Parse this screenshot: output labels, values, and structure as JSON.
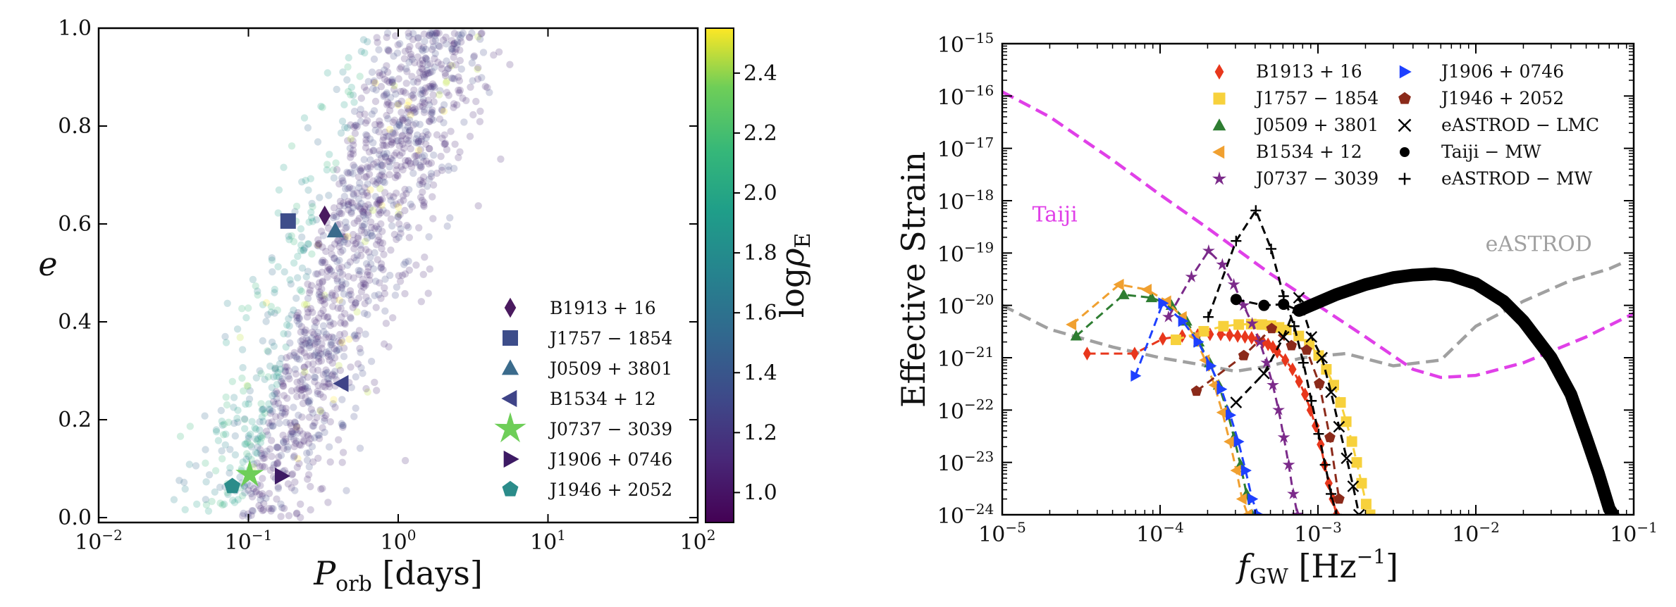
{
  "chart_data": [
    {
      "type": "scatter",
      "x_axis": {
        "scale": "log",
        "range": [
          0.01,
          100
        ],
        "ticks": [
          {
            "label": "10",
            "exp": "−2"
          },
          {
            "label": "10",
            "exp": "−1"
          },
          {
            "label": "10",
            "exp": "0"
          },
          {
            "label": "10",
            "exp": "1"
          },
          {
            "label": "10",
            "exp": "2"
          }
        ],
        "label": {
          "main": "P",
          "sub": "orb",
          "unit": " [days]"
        }
      },
      "y_axis": {
        "scale": "linear",
        "range": [
          -0.01,
          1.0
        ],
        "ticks": [
          "0.0",
          "0.2",
          "0.4",
          "0.6",
          "0.8",
          "1.0"
        ],
        "label": "e"
      },
      "colorbar": {
        "label": {
          "main": "log",
          "rho": "ρ",
          "sub": "E"
        },
        "range": [
          0.9,
          2.55
        ],
        "ticks": [
          "1.0",
          "1.2",
          "1.4",
          "1.6",
          "1.8",
          "2.0",
          "2.2",
          "2.4"
        ],
        "colormap": "viridis"
      },
      "population": {
        "count": 1500,
        "note_color": "#45327a"
      },
      "pulsars": [
        {
          "name": "B1913 + 16",
          "marker": "diamond",
          "P": 0.323,
          "e": 0.617,
          "color": "#4a1a5f"
        },
        {
          "name": "J1757 − 1854",
          "marker": "square",
          "P": 0.184,
          "e": 0.606,
          "color": "#3d4d8a"
        },
        {
          "name": "J0509 + 3801",
          "marker": "triangle-up",
          "P": 0.38,
          "e": 0.586,
          "color": "#3b6b8c"
        },
        {
          "name": "B1534 + 12",
          "marker": "triangle-left",
          "P": 0.421,
          "e": 0.274,
          "color": "#3f4488"
        },
        {
          "name": "J0737 − 3039",
          "marker": "star",
          "P": 0.102,
          "e": 0.088,
          "color": "#6ece58"
        },
        {
          "name": "J1906 + 0746",
          "marker": "triangle-right",
          "P": 0.166,
          "e": 0.085,
          "color": "#3d1a64"
        },
        {
          "name": "J1946 + 2052",
          "marker": "pentagon",
          "P": 0.078,
          "e": 0.064,
          "color": "#2b8c8a"
        }
      ]
    },
    {
      "type": "line",
      "x_axis": {
        "scale": "log",
        "range": [
          1e-05,
          0.1
        ],
        "ticks": [
          {
            "label": "10",
            "exp": "−5"
          },
          {
            "label": "10",
            "exp": "−4"
          },
          {
            "label": "10",
            "exp": "−3"
          },
          {
            "label": "10",
            "exp": "−2"
          },
          {
            "label": "10",
            "exp": "−1"
          }
        ],
        "label": {
          "main": "f",
          "sub": "GW",
          "unit": " [Hz",
          "unit_exp": "−1",
          "unit_end": "]"
        }
      },
      "y_axis": {
        "scale": "log",
        "range": [
          1e-24,
          1e-15
        ],
        "ticks": [
          {
            "label": "10",
            "exp": "−24"
          },
          {
            "label": "10",
            "exp": "−23"
          },
          {
            "label": "10",
            "exp": "−22"
          },
          {
            "label": "10",
            "exp": "−21"
          },
          {
            "label": "10",
            "exp": "−20"
          },
          {
            "label": "10",
            "exp": "−19"
          },
          {
            "label": "10",
            "exp": "−18"
          },
          {
            "label": "10",
            "exp": "−17"
          },
          {
            "label": "10",
            "exp": "−16"
          },
          {
            "label": "10",
            "exp": "−15"
          }
        ],
        "label": "Effective Strain"
      },
      "annotations": [
        {
          "text": "Taiji",
          "f": 1.55e-05,
          "h": 4e-19,
          "color": "#e040e8"
        },
        {
          "text": "eASTROD",
          "f": 0.0115,
          "h": 1.1e-19,
          "color": "#a0a0a0"
        }
      ],
      "sensitivity_curves": [
        {
          "name": "Taiji",
          "color": "#e040e8",
          "points": [
            [
              1e-05,
              1.2e-16
            ],
            [
              2e-05,
              4e-17
            ],
            [
              5e-05,
              6e-18
            ],
            [
              0.0001,
              1.3e-18
            ],
            [
              0.0002,
              3e-19
            ],
            [
              0.0005,
              4e-20
            ],
            [
              0.001,
              1e-20
            ],
            [
              0.002,
              2.5e-21
            ],
            [
              0.004,
              6e-22
            ],
            [
              0.006,
              4.2e-22
            ],
            [
              0.01,
              4.6e-22
            ],
            [
              0.02,
              8e-22
            ],
            [
              0.05,
              2.5e-21
            ],
            [
              0.1,
              7e-21
            ]
          ]
        },
        {
          "name": "eASTROD",
          "color": "#a0a0a0",
          "points": [
            [
              1e-05,
              1e-20
            ],
            [
              2e-05,
              3.5e-21
            ],
            [
              5e-05,
              1.6e-21
            ],
            [
              0.0001,
              1e-21
            ],
            [
              0.0002,
              7e-22
            ],
            [
              0.0003,
              5.5e-22
            ],
            [
              0.0005,
              7e-22
            ],
            [
              0.0008,
              1e-21
            ],
            [
              0.0015,
              1.2e-21
            ],
            [
              0.003,
              7e-22
            ],
            [
              0.006,
              9e-22
            ],
            [
              0.01,
              4e-21
            ],
            [
              0.02,
              1.2e-20
            ],
            [
              0.04,
              3e-20
            ],
            [
              0.07,
              5e-20
            ],
            [
              0.09,
              7e-20
            ]
          ]
        }
      ],
      "series": [
        {
          "name": "B1913 + 16",
          "marker": "diamond",
          "color": "#e8371c",
          "points": [
            [
              3.45e-05,
              1.2e-21
            ],
            [
              6.9e-05,
              1.2e-21
            ],
            [
              0.000104,
              2.3e-21
            ],
            [
              0.000138,
              2.6e-21
            ],
            [
              0.000173,
              2.7e-21
            ],
            [
              0.000207,
              2.8e-21
            ],
            [
              0.000242,
              2.8e-21
            ],
            [
              0.000276,
              2.7e-21
            ],
            [
              0.00031,
              2.6e-21
            ],
            [
              0.000345,
              2.5e-21
            ],
            [
              0.00038,
              2.4e-21
            ],
            [
              0.000414,
              2.2e-21
            ],
            [
              0.000448,
              2e-21
            ],
            [
              0.000483,
              1.8e-21
            ],
            [
              0.000518,
              1.6e-21
            ],
            [
              0.000552,
              1.3e-21
            ],
            [
              0.000621,
              9e-22
            ],
            [
              0.00069,
              6e-22
            ],
            [
              0.000759,
              3.5e-22
            ],
            [
              0.000828,
              2e-22
            ],
            [
              0.000897,
              1e-22
            ],
            [
              0.000966,
              5e-23
            ],
            [
              0.00104,
              2.2e-23
            ],
            [
              0.0011,
              9e-24
            ],
            [
              0.00117,
              4e-24
            ],
            [
              0.00124,
              2e-24
            ],
            [
              0.00131,
              1e-24
            ]
          ]
        },
        {
          "name": "J1757 − 1854",
          "marker": "square",
          "color": "#f7d13c",
          "points": [
            [
              0.000126,
              2.2e-21
            ],
            [
              0.000189,
              3.2e-21
            ],
            [
              0.000252,
              4e-21
            ],
            [
              0.000315,
              4.3e-21
            ],
            [
              0.000378,
              4.4e-21
            ],
            [
              0.000441,
              4.3e-21
            ],
            [
              0.000504,
              4.1e-21
            ],
            [
              0.000567,
              3.8e-21
            ],
            [
              0.00063,
              3.4e-21
            ],
            [
              0.000756,
              2.6e-21
            ],
            [
              0.000882,
              1.8e-21
            ],
            [
              0.00101,
              1.1e-21
            ],
            [
              0.00113,
              6e-22
            ],
            [
              0.00126,
              3e-22
            ],
            [
              0.00139,
              1.4e-22
            ],
            [
              0.00151,
              6e-23
            ],
            [
              0.00164,
              2.5e-23
            ],
            [
              0.00176,
              1e-23
            ],
            [
              0.00189,
              4e-24
            ],
            [
              0.00202,
              1.6e-24
            ],
            [
              0.00214,
              1e-24
            ]
          ]
        },
        {
          "name": "J0509 + 3801",
          "marker": "triangle-up",
          "color": "#2e7d32",
          "points": [
            [
              2.94e-05,
              2.6e-21
            ],
            [
              5.88e-05,
              1.6e-20
            ],
            [
              8.82e-05,
              1.4e-20
            ],
            [
              0.000118,
              1e-20
            ],
            [
              0.000147,
              5e-21
            ],
            [
              0.000176,
              2e-21
            ],
            [
              0.000206,
              8e-22
            ],
            [
              0.000235,
              3e-22
            ],
            [
              0.000265,
              1e-22
            ],
            [
              0.000294,
              3e-23
            ],
            [
              0.000323,
              9e-24
            ],
            [
              0.000353,
              2.5e-24
            ],
            [
              0.000382,
              1e-24
            ]
          ]
        },
        {
          "name": "B1534 + 12",
          "marker": "triangle-left",
          "color": "#f0a030",
          "points": [
            [
              2.76e-05,
              4.3e-21
            ],
            [
              5.52e-05,
              2.5e-20
            ],
            [
              8.28e-05,
              2e-20
            ],
            [
              0.00011,
              1.2e-20
            ],
            [
              0.000138,
              6e-21
            ],
            [
              0.000166,
              2.5e-21
            ],
            [
              0.000193,
              9e-22
            ],
            [
              0.000221,
              3e-22
            ],
            [
              0.000248,
              9e-23
            ],
            [
              0.000276,
              2.5e-23
            ],
            [
              0.000304,
              7e-24
            ],
            [
              0.000331,
              2e-24
            ],
            [
              0.000359,
              1e-24
            ]
          ]
        },
        {
          "name": "J0737 − 3039",
          "marker": "star",
          "color": "#7b2a8a",
          "points": [
            [
              0.000113,
              6e-21
            ],
            [
              0.000158,
              3.5e-20
            ],
            [
              0.000203,
              1.1e-19
            ],
            [
              0.000248,
              6e-20
            ],
            [
              0.000293,
              2.5e-20
            ],
            [
              0.000338,
              1e-20
            ],
            [
              0.000383,
              4.5e-21
            ],
            [
              0.000428,
              2e-21
            ],
            [
              0.000473,
              8e-22
            ],
            [
              0.000518,
              3e-22
            ],
            [
              0.000563,
              1e-22
            ],
            [
              0.000608,
              3e-23
            ],
            [
              0.000653,
              9e-24
            ],
            [
              0.000698,
              2.5e-24
            ],
            [
              0.000743,
              1e-24
            ]
          ]
        },
        {
          "name": "J1906 + 0746",
          "marker": "triangle-right",
          "color": "#1e40ff",
          "points": [
            [
              6.96e-05,
              4.5e-22
            ],
            [
              0.000104,
              1.1e-20
            ],
            [
              0.000139,
              5e-21
            ],
            [
              0.000174,
              2e-21
            ],
            [
              0.000209,
              7e-22
            ],
            [
              0.000244,
              2.5e-22
            ],
            [
              0.000278,
              8e-23
            ],
            [
              0.000313,
              2.5e-23
            ],
            [
              0.000348,
              7e-24
            ],
            [
              0.000383,
              2e-24
            ],
            [
              0.000418,
              1e-24
            ]
          ]
        },
        {
          "name": "J1946 + 2052",
          "marker": "pentagon",
          "color": "#8b2a1a",
          "points": [
            [
              0.00017,
              2.3e-22
            ],
            [
              0.000339,
              1.1e-21
            ],
            [
              0.000509,
              3.6e-21
            ],
            [
              0.000679,
              1.7e-21
            ],
            [
              0.000848,
              1.4e-21
            ],
            [
              0.00102,
              3.2e-22
            ],
            [
              0.00119,
              3e-23
            ],
            [
              0.00136,
              2e-24
            ]
          ]
        },
        {
          "name": "eASTROD − LMC",
          "marker": "x",
          "color": "#000000",
          "points": [
            [
              0.000303,
              1.4e-22
            ],
            [
              0.000455,
              5e-22
            ],
            [
              0.000606,
              2.5e-21
            ],
            [
              0.000758,
              1.4e-20
            ],
            [
              0.000909,
              2.5e-21
            ],
            [
              0.00106,
              1e-21
            ],
            [
              0.00121,
              2.2e-22
            ],
            [
              0.00136,
              4.8e-23
            ],
            [
              0.00152,
              1.2e-23
            ],
            [
              0.00167,
              3.5e-24
            ],
            [
              0.00182,
              1e-24
            ]
          ]
        },
        {
          "name": "Taiji − MW",
          "marker": "circle",
          "color": "#000000",
          "points": [
            [
              0.000303,
              1.3e-20
            ],
            [
              0.000455,
              1e-20
            ],
            [
              0.000606,
              1.05e-20
            ],
            [
              0.00076,
              8e-21
            ],
            [
              0.0013,
              1.6e-20
            ],
            [
              0.002,
              2.5e-20
            ],
            [
              0.003,
              3.4e-20
            ],
            [
              0.004,
              3.8e-20
            ],
            [
              0.0055,
              4e-20
            ],
            [
              0.007,
              3.7e-20
            ],
            [
              0.01,
              2.6e-20
            ],
            [
              0.015,
              1.2e-20
            ],
            [
              0.02,
              5e-21
            ],
            [
              0.03,
              1e-21
            ],
            [
              0.04,
              2e-22
            ],
            [
              0.05,
              3e-23
            ],
            [
              0.06,
              6e-24
            ],
            [
              0.07,
              1.3e-24
            ],
            [
              0.074,
              1e-24
            ]
          ]
        },
        {
          "name": "eASTROD − MW",
          "marker": "plus",
          "color": "#000000",
          "points": [
            [
              0.000202,
              6e-21
            ],
            [
              0.000303,
              1.7e-19
            ],
            [
              0.000404,
              6.5e-19
            ],
            [
              0.000505,
              1.2e-19
            ],
            [
              0.000606,
              1.5e-20
            ],
            [
              0.000707,
              4e-21
            ],
            [
              0.000808,
              8e-22
            ],
            [
              0.000909,
              1.5e-22
            ],
            [
              0.00101,
              3.5e-23
            ],
            [
              0.00111,
              9e-24
            ],
            [
              0.00121,
              2.5e-24
            ],
            [
              0.00131,
              1e-24
            ]
          ]
        }
      ]
    }
  ]
}
